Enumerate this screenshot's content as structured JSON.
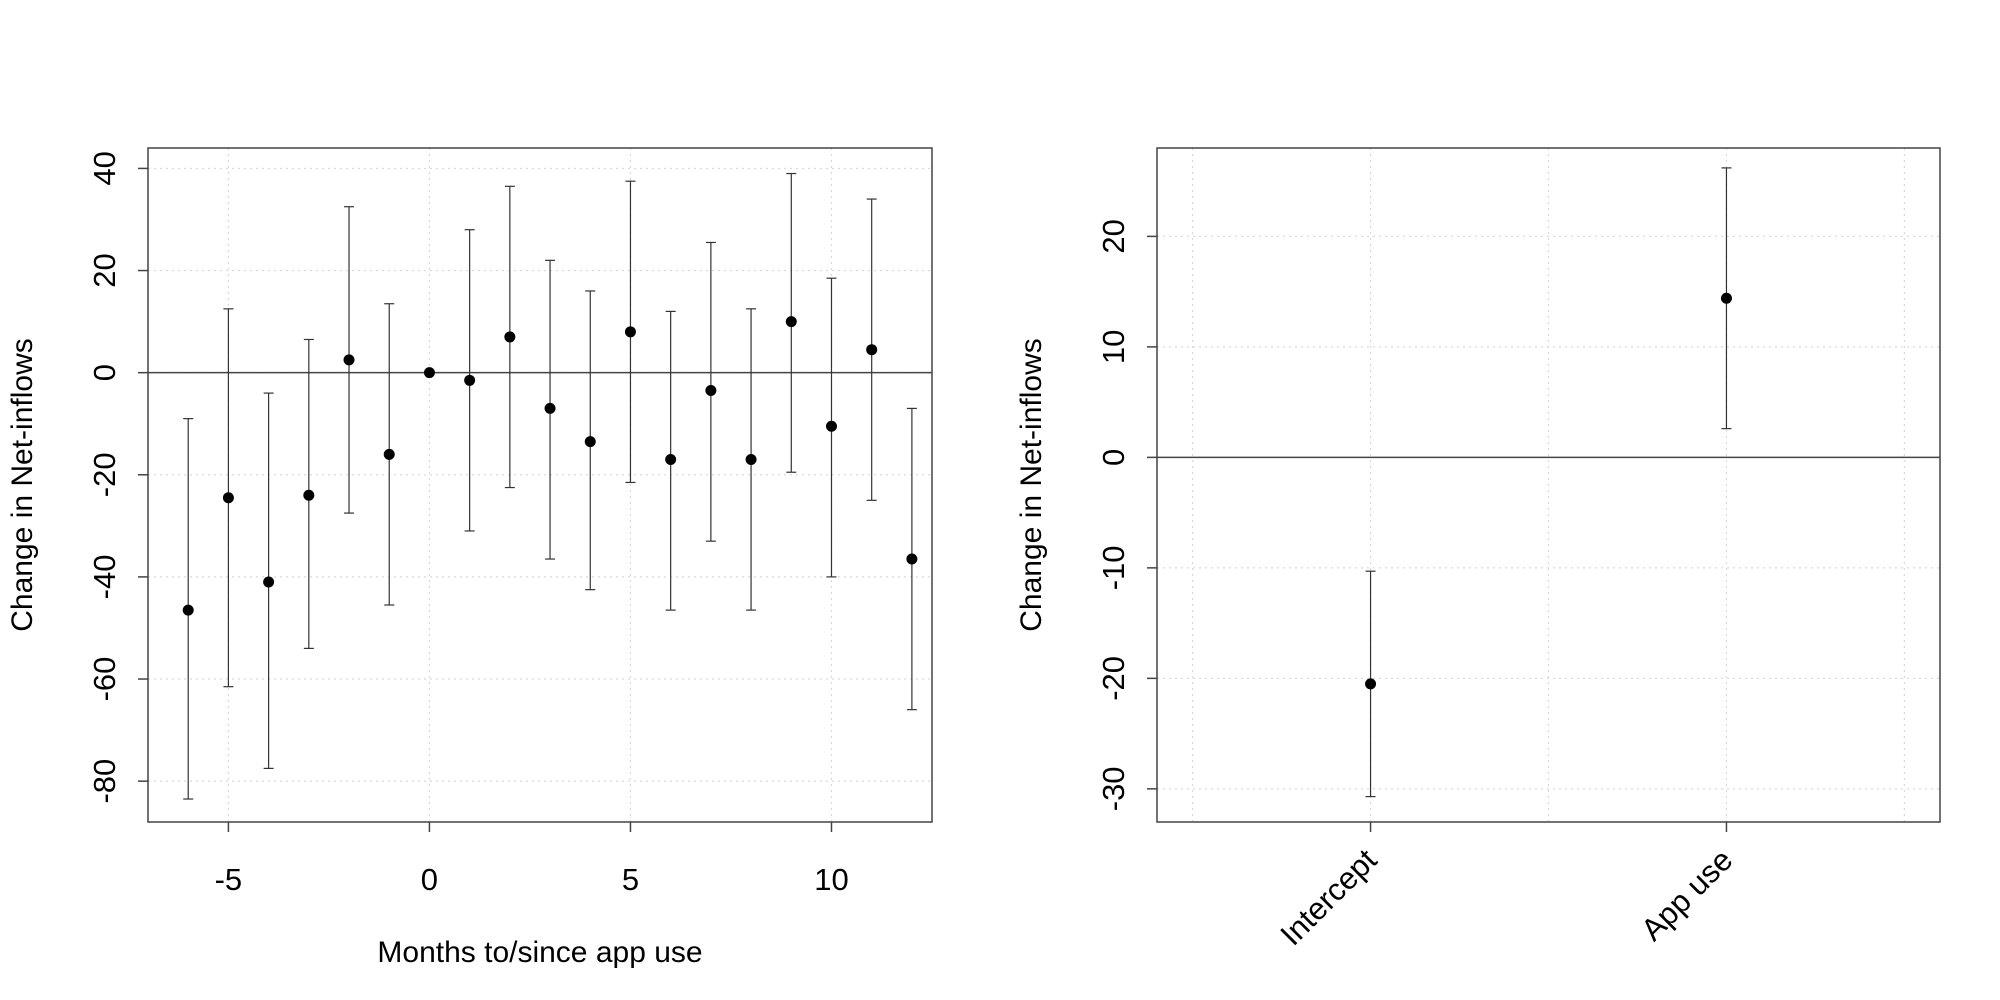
{
  "chart_data": [
    {
      "type": "scatter",
      "subtype": "point-estimates-with-confidence-intervals",
      "title": "",
      "xlabel": "Months to/since app use",
      "ylabel": "Change in Net-inflows",
      "xlim": [
        -7,
        12.5
      ],
      "ylim": [
        -88,
        44
      ],
      "x_ticks": [
        -5,
        0,
        5,
        10
      ],
      "y_ticks": [
        -80,
        -60,
        -40,
        -20,
        0,
        20,
        40
      ],
      "grid": true,
      "reference_line_y": 0,
      "points": [
        {
          "x": -6,
          "y": -46.5,
          "lo": -83.5,
          "hi": -9
        },
        {
          "x": -5,
          "y": -24.5,
          "lo": -61.5,
          "hi": 12.5
        },
        {
          "x": -4,
          "y": -41,
          "lo": -77.5,
          "hi": -4
        },
        {
          "x": -3,
          "y": -24,
          "lo": -54,
          "hi": 6.5
        },
        {
          "x": -2,
          "y": 2.5,
          "lo": -27.5,
          "hi": 32.5
        },
        {
          "x": -1,
          "y": -16,
          "lo": -45.5,
          "hi": 13.5
        },
        {
          "x": 0,
          "y": 0,
          "lo": 0,
          "hi": 0
        },
        {
          "x": 1,
          "y": -1.5,
          "lo": -31,
          "hi": 28
        },
        {
          "x": 2,
          "y": 7,
          "lo": -22.5,
          "hi": 36.5
        },
        {
          "x": 3,
          "y": -7,
          "lo": -36.5,
          "hi": 22
        },
        {
          "x": 4,
          "y": -13.5,
          "lo": -42.5,
          "hi": 16
        },
        {
          "x": 5,
          "y": 8,
          "lo": -21.5,
          "hi": 37.5
        },
        {
          "x": 6,
          "y": -17,
          "lo": -46.5,
          "hi": 12
        },
        {
          "x": 7,
          "y": -3.5,
          "lo": -33,
          "hi": 25.5
        },
        {
          "x": 8,
          "y": -17,
          "lo": -46.5,
          "hi": 12.5
        },
        {
          "x": 9,
          "y": 10,
          "lo": -19.5,
          "hi": 39
        },
        {
          "x": 10,
          "y": -10.5,
          "lo": -40,
          "hi": 18.5
        },
        {
          "x": 11,
          "y": 4.5,
          "lo": -25,
          "hi": 34
        },
        {
          "x": 12,
          "y": -36.5,
          "lo": -66,
          "hi": -7
        }
      ]
    },
    {
      "type": "scatter",
      "subtype": "coefficient-plot",
      "title": "",
      "xlabel": "",
      "ylabel": "Change in Net-inflows",
      "ylim": [
        -33,
        28
      ],
      "y_ticks": [
        -30,
        -20,
        -10,
        0,
        10,
        20
      ],
      "grid": true,
      "reference_line_y": 0,
      "categories": [
        "Intercept",
        "App use"
      ],
      "points": [
        {
          "category": "Intercept",
          "y": -20.5,
          "lo": -30.7,
          "hi": -10.3
        },
        {
          "category": "App use",
          "y": 14.4,
          "lo": 2.6,
          "hi": 26.2
        }
      ]
    }
  ]
}
